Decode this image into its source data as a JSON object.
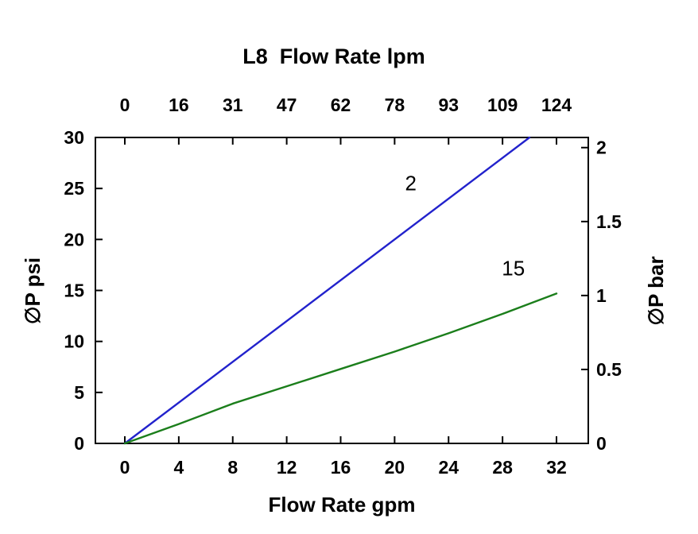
{
  "chart_data": {
    "type": "line",
    "title": "L8  Flow Rate lpm",
    "grid": false,
    "legend": "none",
    "x_top": {
      "label": "L8  Flow Rate lpm",
      "tick_labels": [
        "0",
        "16",
        "31",
        "47",
        "62",
        "78",
        "93",
        "109",
        "124"
      ],
      "positions_gpm": [
        0,
        4,
        8,
        12,
        16,
        20,
        24,
        28,
        32
      ],
      "units": "lpm"
    },
    "x_bottom": {
      "label": "Flow Rate gpm",
      "ticks": [
        0,
        4,
        8,
        12,
        16,
        20,
        24,
        28,
        32
      ],
      "range": [
        0,
        32
      ],
      "units": "gpm"
    },
    "y_left": {
      "label": "∅P psi",
      "ticks": [
        0,
        5,
        10,
        15,
        20,
        25,
        30
      ],
      "range": [
        0,
        30
      ],
      "units": "psi"
    },
    "y_right": {
      "label": "∅P bar",
      "ticks": [
        0,
        0.5,
        1,
        1.5,
        2
      ],
      "psi_per_bar": 14.5038,
      "units": "bar"
    },
    "series": [
      {
        "name": "2",
        "color": "#2222cc",
        "x": [
          0,
          30
        ],
        "y": [
          0,
          30
        ],
        "label_at": {
          "x": 21.2,
          "y": 24.8
        }
      },
      {
        "name": "15",
        "color": "#1b7e1b",
        "x": [
          0,
          4,
          8,
          12,
          16,
          20,
          24,
          28,
          32
        ],
        "y": [
          0,
          1.9,
          3.9,
          5.6,
          7.3,
          9.0,
          10.8,
          12.7,
          14.7
        ],
        "label_at": {
          "x": 28.8,
          "y": 16.5
        }
      }
    ]
  }
}
